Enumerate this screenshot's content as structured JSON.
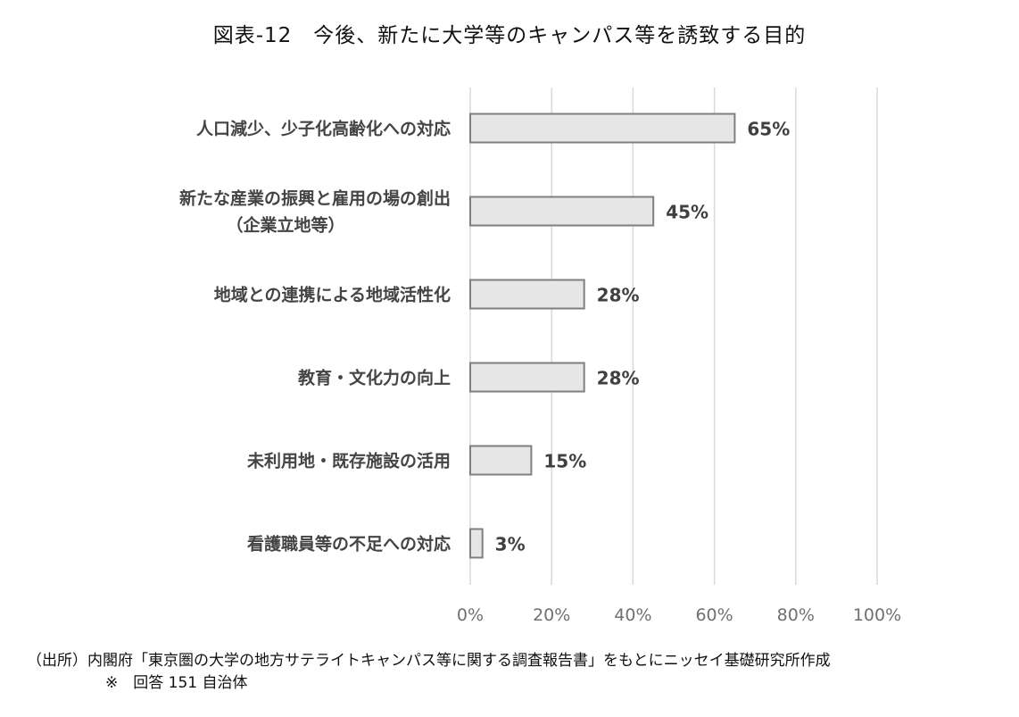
{
  "chart_data": {
    "type": "bar",
    "orientation": "horizontal",
    "title": "図表-12　今後、新たに大学等のキャンパス等を誘致する目的",
    "categories": [
      [
        "人口減少、少子化高齢化への対応"
      ],
      [
        "新たな産業の振興と雇用の場の創出",
        "（企業立地等）"
      ],
      [
        "地域との連携による地域活性化"
      ],
      [
        "教育・文化力の向上"
      ],
      [
        "未利用地・既存施設の活用"
      ],
      [
        "看護職員等の不足への対応"
      ]
    ],
    "values": [
      65,
      45,
      28,
      28,
      15,
      3
    ],
    "value_labels": [
      "65%",
      "45%",
      "28%",
      "28%",
      "15%",
      "3%"
    ],
    "x_ticks": [
      "0%",
      "20%",
      "40%",
      "60%",
      "80%",
      "100%"
    ],
    "xlim": [
      0,
      100
    ],
    "grid": true,
    "bar_color": "#e6e6e6",
    "bar_stroke": "#7f7f7f",
    "grid_color": "#d9d9d9"
  },
  "source": "（出所）内閣府「東京圏の大学の地方サテライトキャンパス等に関する調査報告書」をもとにニッセイ基礎研究所作成",
  "note": "※　回答 151 自治体"
}
